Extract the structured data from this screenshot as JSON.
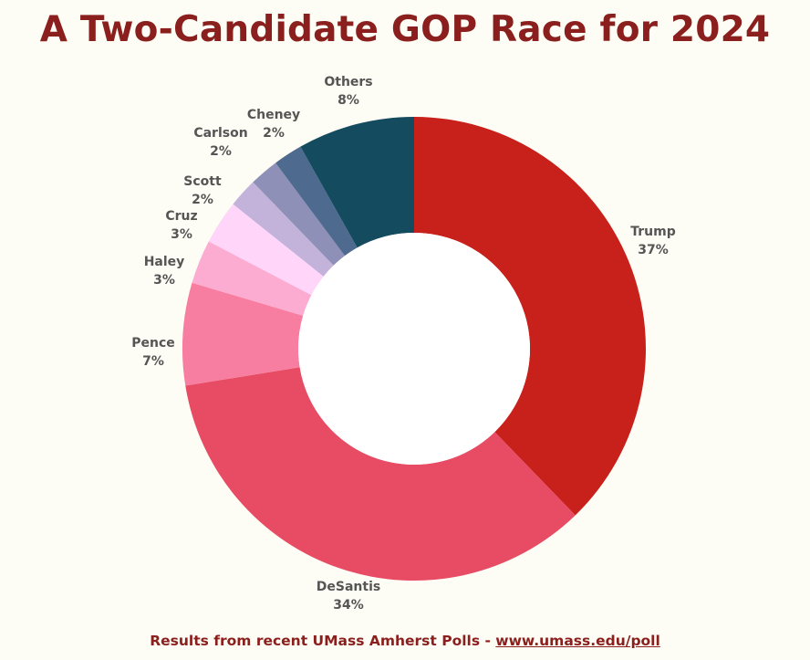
{
  "chart_data": {
    "type": "pie",
    "title": "A Two-Candidate GOP Race for 2024",
    "categories": [
      "Trump",
      "DeSantis",
      "Pence",
      "Haley",
      "Cruz",
      "Scott",
      "Carlson",
      "Cheney",
      "Others"
    ],
    "values": [
      37,
      34,
      7,
      3,
      3,
      2,
      2,
      2,
      8
    ],
    "value_labels": [
      "37%",
      "34%",
      "7%",
      "3%",
      "3%",
      "2%",
      "2%",
      "2%",
      "8%"
    ],
    "colors": [
      "#c8201b",
      "#e84b64",
      "#f77ea0",
      "#fcabd1",
      "#ffd5fa",
      "#c3b3db",
      "#8f90b8",
      "#4e6a8e",
      "#154b5f",
      "#385a7d"
    ],
    "donut": true,
    "legend": "none",
    "grid": false
  },
  "footer": {
    "text": "Results from recent UMass Amherst Polls - ",
    "link": "www.umass.edu/poll"
  }
}
